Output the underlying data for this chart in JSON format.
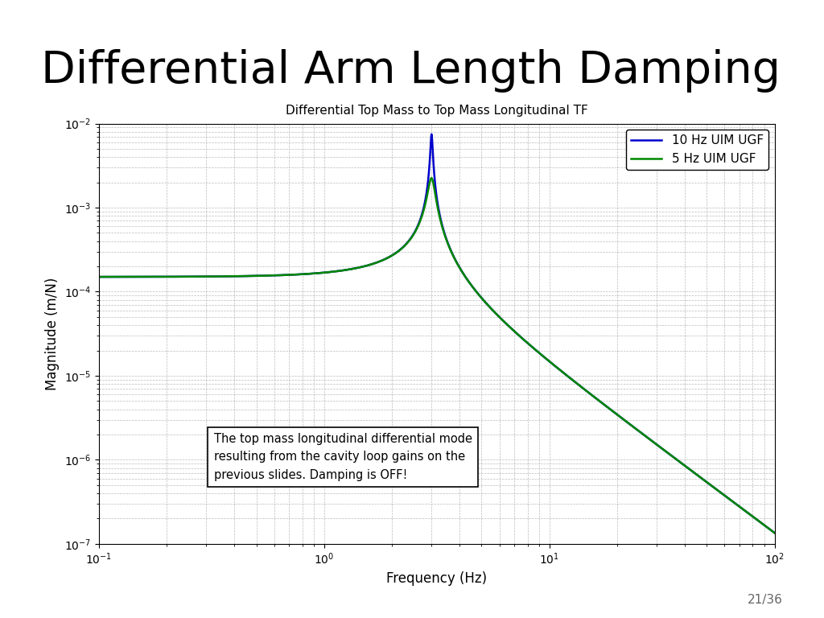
{
  "slide_title": "Differential Arm Length Damping",
  "plot_title": "Differential Top Mass to Top Mass Longitudinal TF",
  "xlabel": "Frequency (Hz)",
  "ylabel": "Magnitude (m/N)",
  "xlim": [
    0.1,
    100
  ],
  "ylim": [
    1e-07,
    0.01
  ],
  "legend": [
    "10 Hz UIM UGF",
    "5 Hz UIM UGF"
  ],
  "line_colors": [
    "#0000cc",
    "#008800"
  ],
  "annotation_text": "The top mass longitudinal differential mode\nresulting from the cavity loop gains on the\nprevious slides. Damping is OFF!",
  "slide_number": "21/36",
  "background_color": "#ffffff",
  "plot_bg_color": "#ffffff",
  "grid_color": "#aaaaaa"
}
